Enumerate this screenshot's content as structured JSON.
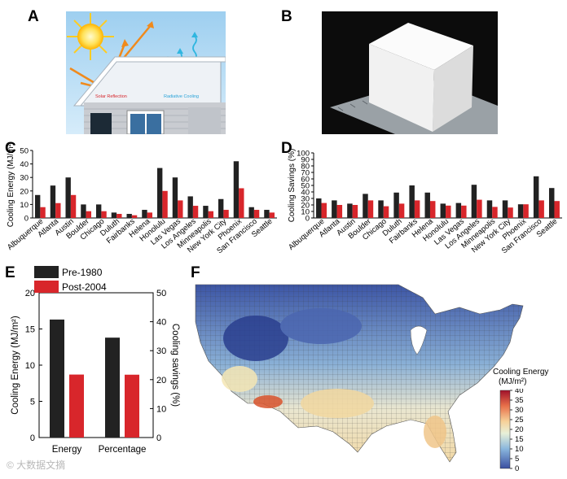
{
  "panels": {
    "a": "A",
    "b": "B",
    "c": "C",
    "d": "D",
    "e": "E",
    "f": "F"
  },
  "panel_a": {
    "solar_label": "Solar Reflection",
    "radiative_label": "Radiative Cooling"
  },
  "colors": {
    "pre": "#222222",
    "post": "#d8262b"
  },
  "chart_data": [
    {
      "id": "C",
      "type": "bar",
      "ylabel": "Cooling Energy (MJ/m²)",
      "ylim": [
        0,
        50
      ],
      "yticks": [
        0,
        10,
        20,
        30,
        40,
        50
      ],
      "categories": [
        "Albuquerque",
        "Atlanta",
        "Austin",
        "Boulder",
        "Chicago",
        "Duluth",
        "Fairbanks",
        "Helena",
        "Honolulu",
        "Las Vegas",
        "Los Angeles",
        "Minneapolis",
        "New York City",
        "Phoenix",
        "San Francisco",
        "Seattle"
      ],
      "series": [
        {
          "name": "Pre-1980",
          "values": [
            17,
            24,
            30,
            10,
            10,
            4,
            3,
            6,
            37,
            30,
            16,
            9,
            14,
            42,
            8,
            6
          ]
        },
        {
          "name": "Post-2004",
          "values": [
            8,
            11,
            17,
            5,
            5,
            3,
            2,
            4,
            20,
            13,
            9,
            5,
            6,
            22,
            6,
            4
          ]
        }
      ]
    },
    {
      "id": "D",
      "type": "bar",
      "ylabel": "Cooling Savings (%)",
      "ylim": [
        0,
        100
      ],
      "yticks": [
        0,
        10,
        20,
        30,
        40,
        50,
        60,
        70,
        80,
        90,
        100
      ],
      "categories": [
        "Albuquerque",
        "Atlanta",
        "Austin",
        "Boulder",
        "Chicago",
        "Duluth",
        "Fairbanks",
        "Helena",
        "Honolulu",
        "Las Vegas",
        "Los Angeles",
        "Minneapolis",
        "New York City",
        "Phoenix",
        "San Francisco",
        "Seattle"
      ],
      "series": [
        {
          "name": "Pre-1980",
          "values": [
            30,
            27,
            22,
            37,
            27,
            39,
            50,
            39,
            22,
            23,
            51,
            27,
            27,
            21,
            64,
            46
          ]
        },
        {
          "name": "Post-2004",
          "values": [
            23,
            20,
            20,
            27,
            18,
            22,
            27,
            26,
            19,
            19,
            28,
            17,
            16,
            21,
            27,
            26
          ]
        }
      ]
    },
    {
      "id": "E",
      "type": "bar",
      "ylabel_left": "Cooling Energy (MJ/m²)",
      "ylabel_right": "Cooling savings (%)",
      "ylim_left": [
        0,
        20
      ],
      "yticks_left": [
        0,
        5,
        10,
        15,
        20
      ],
      "ylim_right": [
        0,
        50
      ],
      "yticks_right": [
        0,
        10,
        20,
        30,
        40,
        50
      ],
      "categories": [
        "Energy",
        "Percentage"
      ],
      "series": [
        {
          "name": "Pre-1980",
          "values": [
            16.3,
            34.5
          ]
        },
        {
          "name": "Post-2004",
          "values": [
            8.7,
            21.7
          ]
        }
      ],
      "units": [
        "left",
        "right"
      ]
    },
    {
      "id": "F",
      "type": "heatmap",
      "colorbar_title": "Cooling Energy",
      "colorbar_unit": "(MJ/m²)",
      "range": [
        0,
        40
      ],
      "ticks": [
        0,
        5,
        10,
        15,
        20,
        25,
        30,
        35,
        40
      ]
    }
  ],
  "watermark": "© 大数据文摘"
}
